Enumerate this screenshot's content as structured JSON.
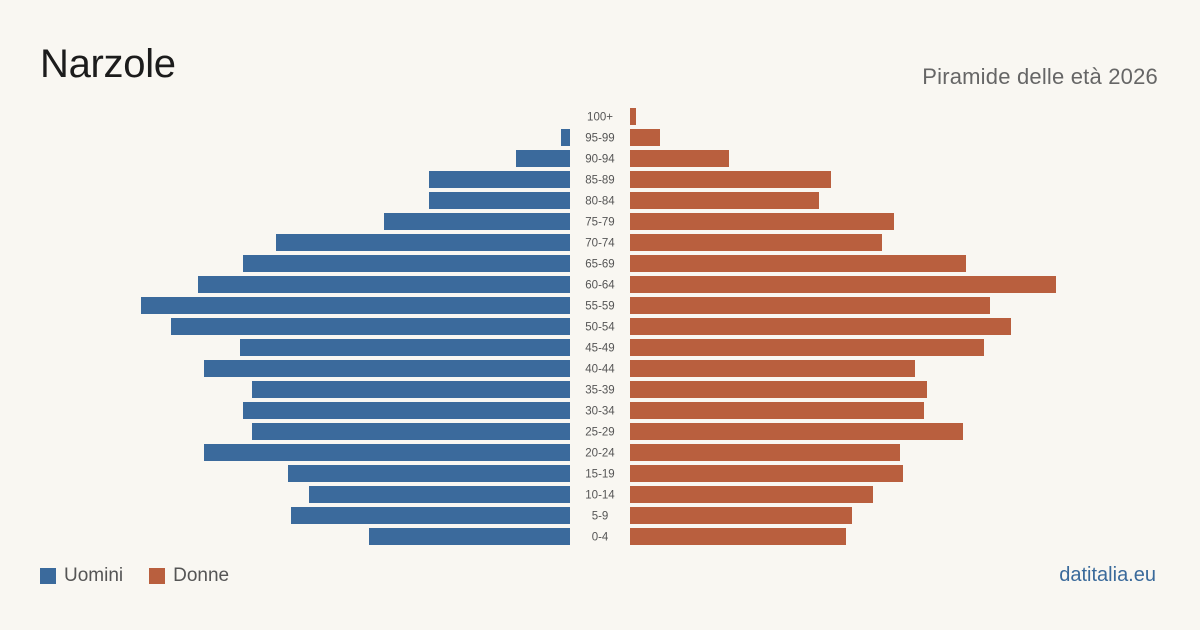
{
  "header": {
    "title": "Narzole",
    "subtitle": "Piramide delle età 2026"
  },
  "legend": {
    "men_label": "Uomini",
    "women_label": "Donne"
  },
  "footer": {
    "source": "datitalia.eu"
  },
  "colors": {
    "men": "#3b6a9c",
    "women": "#b95f3e",
    "background": "#f9f7f2"
  },
  "chart_data": {
    "type": "bar",
    "orientation": "horizontal-pyramid",
    "categories": [
      "100+",
      "95-99",
      "90-94",
      "85-89",
      "80-84",
      "75-79",
      "70-74",
      "65-69",
      "60-64",
      "55-59",
      "50-54",
      "45-49",
      "40-44",
      "35-39",
      "30-34",
      "25-29",
      "20-24",
      "15-19",
      "10-14",
      "5-9",
      "0-4"
    ],
    "series": [
      {
        "name": "Uomini",
        "values": [
          0,
          3,
          18,
          47,
          47,
          62,
          98,
          109,
          124,
          143,
          133,
          110,
          122,
          106,
          109,
          106,
          122,
          94,
          87,
          93,
          67
        ]
      },
      {
        "name": "Donne",
        "values": [
          2,
          10,
          33,
          67,
          63,
          88,
          84,
          112,
          142,
          120,
          127,
          118,
          95,
          99,
          98,
          111,
          90,
          91,
          81,
          74,
          72
        ]
      }
    ],
    "grid": false,
    "legend_position": "bottom-left"
  }
}
